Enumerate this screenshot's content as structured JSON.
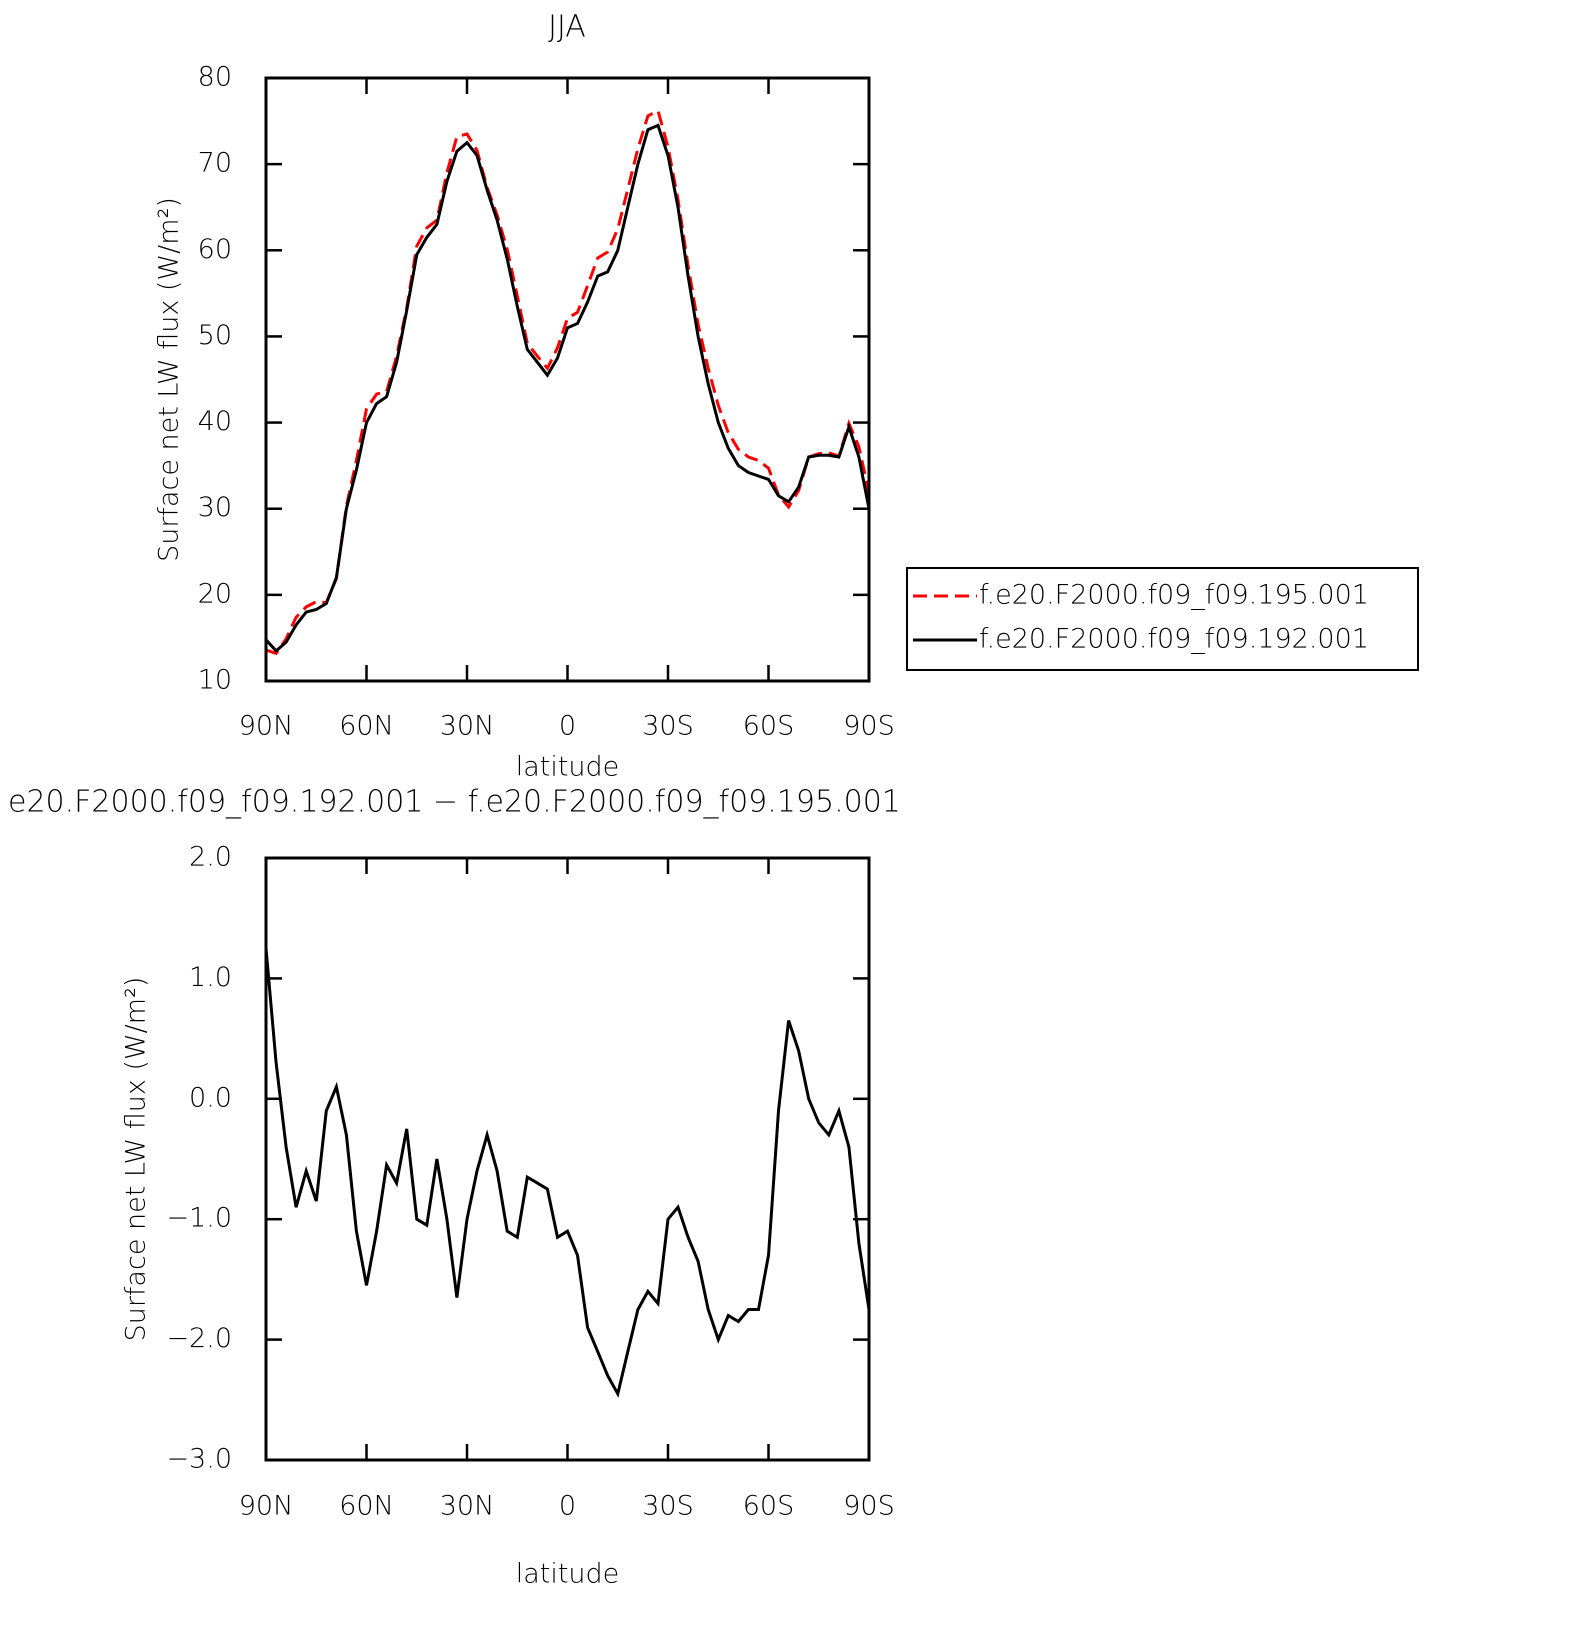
{
  "chart_data": [
    {
      "type": "line",
      "title": "JJA",
      "xlabel": "latitude",
      "ylabel": "Surface net LW flux (W/m²)",
      "x": [
        90,
        87,
        84,
        81,
        78,
        75,
        72,
        69,
        66,
        63,
        60,
        57,
        54,
        51,
        48,
        45,
        42,
        39,
        36,
        33,
        30,
        27,
        24,
        21,
        18,
        15,
        12,
        9,
        6,
        3,
        0,
        -3,
        -6,
        -9,
        -12,
        -15,
        -18,
        -21,
        -24,
        -27,
        -30,
        -33,
        -36,
        -39,
        -42,
        -45,
        -48,
        -51,
        -54,
        -57,
        -60,
        -63,
        -66,
        -69,
        -72,
        -75,
        -78,
        -81,
        -84,
        -87,
        -90
      ],
      "xlim": [
        90,
        -90
      ],
      "xticks": [
        {
          "value": 90,
          "label": "90N"
        },
        {
          "value": 60,
          "label": "60N"
        },
        {
          "value": 30,
          "label": "30N"
        },
        0,
        {
          "value": -30,
          "label": "30S"
        },
        {
          "value": -60,
          "label": "60S"
        },
        {
          "value": -90,
          "label": "90S"
        }
      ],
      "ylim": [
        10,
        80
      ],
      "yticks": [
        10,
        20,
        30,
        40,
        50,
        60,
        70,
        80
      ],
      "legend": "right",
      "series": [
        {
          "name": "f.e20.F2000.f09_f09.195.001",
          "color": "#ff0000",
          "style": "dashed",
          "values": [
            13.6,
            13.2,
            14.9,
            17.4,
            18.6,
            19.2,
            19.1,
            21.9,
            30.3,
            35.6,
            41.6,
            43.3,
            43.6,
            47.7,
            53.3,
            60.5,
            62.6,
            63.5,
            69.0,
            73.2,
            73.5,
            71.6,
            67.3,
            64.1,
            60.1,
            54.7,
            49.2,
            47.7,
            46.3,
            48.7,
            52.1,
            52.8,
            55.9,
            59.1,
            59.8,
            62.5,
            67.1,
            71.8,
            75.6,
            76.2,
            72.0,
            65.9,
            58.2,
            51.4,
            46.3,
            42.0,
            38.8,
            36.9,
            36.0,
            35.6,
            34.7,
            31.6,
            30.2,
            32.1,
            36.0,
            36.4,
            36.5,
            36.1,
            39.9,
            37.2,
            31.8
          ]
        },
        {
          "name": "f.e20.F2000.f09_f09.192.001",
          "color": "#000000",
          "style": "solid",
          "values": [
            14.8,
            13.5,
            14.5,
            16.5,
            18.0,
            18.3,
            19.0,
            22.0,
            30.0,
            34.5,
            40.0,
            42.2,
            43.0,
            47.0,
            53.0,
            59.5,
            61.5,
            63.0,
            68.0,
            71.5,
            72.5,
            71.0,
            67.0,
            63.5,
            59.0,
            53.5,
            48.5,
            47.0,
            45.5,
            47.5,
            51.0,
            51.5,
            54.0,
            57.0,
            57.5,
            60.0,
            65.0,
            70.0,
            74.0,
            74.5,
            71.0,
            65.0,
            57.0,
            50.0,
            44.5,
            40.0,
            37.0,
            35.0,
            34.2,
            33.8,
            33.4,
            31.5,
            30.8,
            32.5,
            36.0,
            36.2,
            36.2,
            36.0,
            39.5,
            36.0,
            30.0
          ]
        }
      ]
    },
    {
      "type": "line",
      "title": "e20.F2000.f09_f09.192.001 − f.e20.F2000.f09_f09.195.001",
      "xlabel": "latitude",
      "ylabel": "Surface net LW flux (W/m²)",
      "x": [
        90,
        87,
        84,
        81,
        78,
        75,
        72,
        69,
        66,
        63,
        60,
        57,
        54,
        51,
        48,
        45,
        42,
        39,
        36,
        33,
        30,
        27,
        24,
        21,
        18,
        15,
        12,
        9,
        6,
        3,
        0,
        -3,
        -6,
        -9,
        -12,
        -15,
        -18,
        -21,
        -24,
        -27,
        -30,
        -33,
        -36,
        -39,
        -42,
        -45,
        -48,
        -51,
        -54,
        -57,
        -60,
        -63,
        -66,
        -69,
        -72,
        -75,
        -78,
        -81,
        -84,
        -87,
        -90
      ],
      "xlim": [
        90,
        -90
      ],
      "xticks": [
        {
          "value": 90,
          "label": "90N"
        },
        {
          "value": 60,
          "label": "60N"
        },
        {
          "value": 30,
          "label": "30N"
        },
        0,
        {
          "value": -30,
          "label": "30S"
        },
        {
          "value": -60,
          "label": "60S"
        },
        {
          "value": -90,
          "label": "90S"
        }
      ],
      "ylim": [
        -3,
        2
      ],
      "yticks": [
        {
          "value": -3,
          "label": "−3.0"
        },
        {
          "value": -2,
          "label": "−2.0"
        },
        {
          "value": -1,
          "label": "−1.0"
        },
        {
          "value": 0,
          "label": "0.0"
        },
        {
          "value": 1,
          "label": "1.0"
        },
        {
          "value": 2,
          "label": "2.0"
        }
      ],
      "series": [
        {
          "color": "#000000",
          "style": "solid",
          "values": [
            1.25,
            0.3,
            -0.4,
            -0.9,
            -0.6,
            -0.85,
            -0.1,
            0.1,
            -0.3,
            -1.1,
            -1.55,
            -1.1,
            -0.55,
            -0.7,
            -0.25,
            -1.0,
            -1.05,
            -0.5,
            -1.0,
            -1.65,
            -1.0,
            -0.6,
            -0.3,
            -0.6,
            -1.1,
            -1.15,
            -0.65,
            -0.7,
            -0.75,
            -1.15,
            -1.1,
            -1.3,
            -1.9,
            -2.1,
            -2.3,
            -2.45,
            -2.1,
            -1.75,
            -1.6,
            -1.7,
            -1.0,
            -0.9,
            -1.15,
            -1.35,
            -1.75,
            -2.0,
            -1.8,
            -1.85,
            -1.75,
            -1.75,
            -1.3,
            -0.1,
            0.65,
            0.4,
            0.0,
            -0.2,
            -0.3,
            -0.1,
            -0.4,
            -1.2,
            -1.75
          ]
        }
      ]
    }
  ]
}
